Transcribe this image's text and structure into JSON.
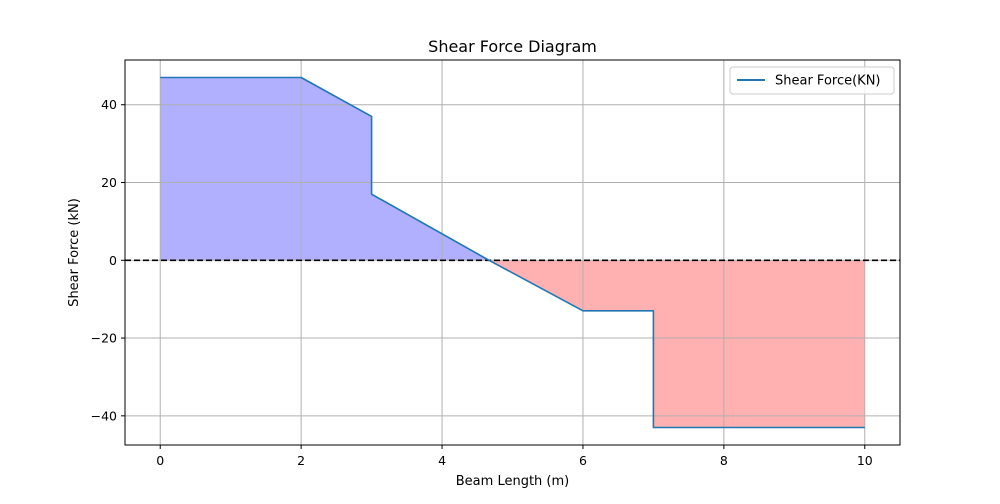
{
  "chart_data": {
    "type": "line",
    "title": "Shear Force Diagram",
    "xlabel": "Beam Length (m)",
    "ylabel": "Shear Force (kN)",
    "xlim": [
      -0.5,
      10.5
    ],
    "ylim": [
      -47.5,
      51.5
    ],
    "xticks": [
      0,
      2,
      4,
      6,
      8,
      10
    ],
    "xtick_labels": [
      "0",
      "2",
      "4",
      "6",
      "8",
      "10"
    ],
    "yticks": [
      -40,
      -20,
      0,
      20,
      40
    ],
    "ytick_labels": [
      "−40",
      "−20",
      "0",
      "20",
      "40"
    ],
    "grid": true,
    "legend_position": "top-right",
    "zero_line": {
      "y": 0,
      "style": "dashed",
      "color": "#000000"
    },
    "series": [
      {
        "name": "Shear Force(KN)",
        "color": "#1f77b4",
        "x": [
          0,
          2,
          3,
          3,
          4.6667,
          6,
          7,
          7,
          10
        ],
        "y": [
          47,
          47,
          37,
          17,
          0,
          -13,
          -13,
          -43,
          -43
        ]
      }
    ],
    "fill_colors": {
      "positive": "#b0b0ff",
      "negative": "#ffb0b0"
    }
  }
}
